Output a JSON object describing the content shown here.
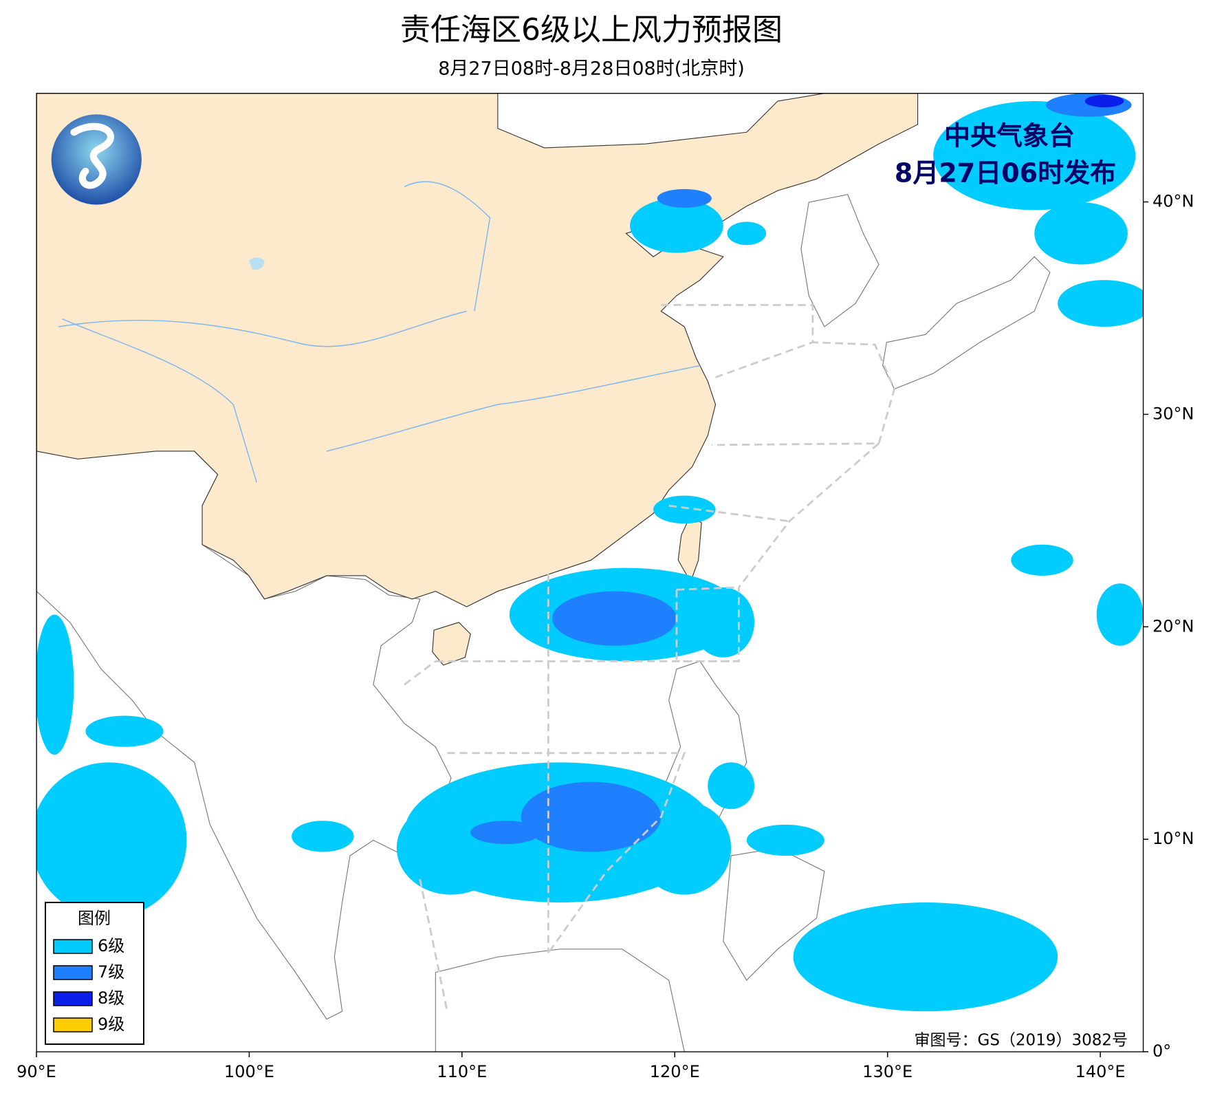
{
  "title": "责任海区6级以上风力预报图",
  "subtitle": "8月27日08时-8月28日08时(北京时)",
  "issuer": "中央气象台",
  "issue_time": "8月27日06时发布",
  "map": {
    "xlim": [
      90,
      142
    ],
    "ylim": [
      0,
      45.1
    ],
    "xticks": [
      {
        "value": 90,
        "label": "90°E"
      },
      {
        "value": 100,
        "label": "100°E"
      },
      {
        "value": 110,
        "label": "110°E"
      },
      {
        "value": 120,
        "label": "120°E"
      },
      {
        "value": 130,
        "label": "130°E"
      },
      {
        "value": 140,
        "label": "140°E"
      }
    ],
    "yticks": [
      {
        "value": 0,
        "label": "0°"
      },
      {
        "value": 10,
        "label": "10°N"
      },
      {
        "value": 20,
        "label": "20°N"
      },
      {
        "value": 30,
        "label": "30°N"
      },
      {
        "value": 40,
        "label": "40°N"
      }
    ]
  },
  "legend": {
    "title": "图例",
    "items": [
      {
        "label": "6级",
        "color": "#00ccff"
      },
      {
        "label": "7级",
        "color": "#1e80ff"
      },
      {
        "label": "8级",
        "color": "#0a1eea"
      },
      {
        "label": "9级",
        "color": "#ffcc00"
      }
    ]
  },
  "map_approval": "审图号：GS（2019）3082号"
}
